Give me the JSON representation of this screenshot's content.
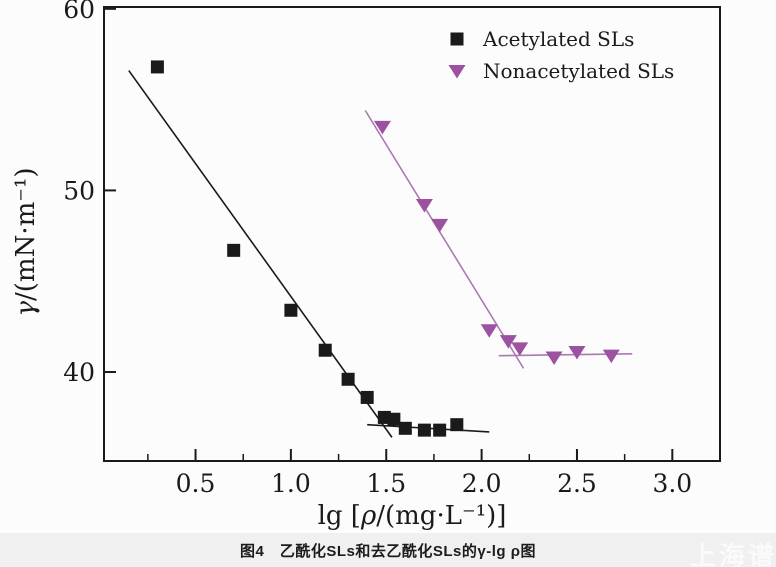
{
  "caption": {
    "text": "图4　乙酰化SLs和去乙酰化SLs的γ-lg ρ图"
  },
  "watermark": {
    "text": "上海谱鉴"
  },
  "colors": {
    "axis": "#1a1a1a",
    "acetylated_marker": "#1a1a1a",
    "acetylated_line": "#1a1a1a",
    "nonacetylated_marker": "#9c52a1",
    "nonacetylated_line": "#aa79b2",
    "background": "#fcfcfc",
    "caption_bar": "#f0f0f0"
  },
  "chart_data": {
    "type": "scatter",
    "title": "",
    "xlabel": "lg [ρ/(mg·L⁻¹)]",
    "ylabel": "γ/(mN·m⁻¹)",
    "xlabel_parts": [
      [
        "lg [",
        false
      ],
      [
        "ρ",
        true
      ],
      [
        "/(mg·L⁻¹)]",
        false
      ]
    ],
    "ylabel_parts": [
      [
        "γ",
        true
      ],
      [
        "/(mN·m⁻¹)",
        false
      ]
    ],
    "xlim": [
      0.02,
      3.25
    ],
    "ylim": [
      35.1,
      60.1
    ],
    "grid": false,
    "legend_position": "upper-right-inside",
    "x_major_ticks": [
      0.5,
      1.0,
      1.5,
      2.0,
      2.5,
      3.0
    ],
    "x_tick_labels": [
      "0.5",
      "1.0",
      "1.5",
      "2.0",
      "2.5",
      "3.0"
    ],
    "x_minor_ticks": [
      0.25,
      0.75,
      1.25,
      1.75,
      2.25,
      2.75
    ],
    "y_major_ticks": [
      40,
      50,
      60
    ],
    "y_tick_labels": [
      "40",
      "50",
      "60"
    ],
    "series": [
      {
        "name": "Acetylated SLs",
        "marker": "square",
        "color": "#1a1a1a",
        "points": [
          [
            0.3,
            56.8
          ],
          [
            0.7,
            46.7
          ],
          [
            1.0,
            43.4
          ],
          [
            1.18,
            41.2
          ],
          [
            1.3,
            39.6
          ],
          [
            1.4,
            38.6
          ],
          [
            1.49,
            37.5
          ],
          [
            1.54,
            37.4
          ],
          [
            1.6,
            36.9
          ],
          [
            1.7,
            36.8
          ],
          [
            1.78,
            36.8
          ],
          [
            1.87,
            37.1
          ]
        ]
      },
      {
        "name": "Nonacetylated SLs",
        "marker": "triangle-down",
        "color": "#9c52a1",
        "points": [
          [
            1.48,
            53.5
          ],
          [
            1.7,
            49.2
          ],
          [
            1.78,
            48.1
          ],
          [
            2.04,
            42.3
          ],
          [
            2.14,
            41.7
          ],
          [
            2.2,
            41.3
          ],
          [
            2.38,
            40.8
          ],
          [
            2.5,
            41.1
          ],
          [
            2.68,
            40.9
          ]
        ]
      }
    ],
    "fit_lines": [
      {
        "series": "Acetylated SLs",
        "color": "#1a1a1a",
        "x1": 0.15,
        "y1": 56.6,
        "x2": 1.53,
        "y2": 36.4
      },
      {
        "series": "Acetylated SLs",
        "color": "#1a1a1a",
        "x1": 1.4,
        "y1": 37.1,
        "x2": 2.04,
        "y2": 36.7
      },
      {
        "series": "Nonacetylated SLs",
        "color": "#aa79b2",
        "x1": 1.39,
        "y1": 54.4,
        "x2": 2.22,
        "y2": 40.2
      },
      {
        "series": "Nonacetylated SLs",
        "color": "#aa79b2",
        "x1": 2.09,
        "y1": 40.9,
        "x2": 2.79,
        "y2": 41.0
      }
    ]
  }
}
